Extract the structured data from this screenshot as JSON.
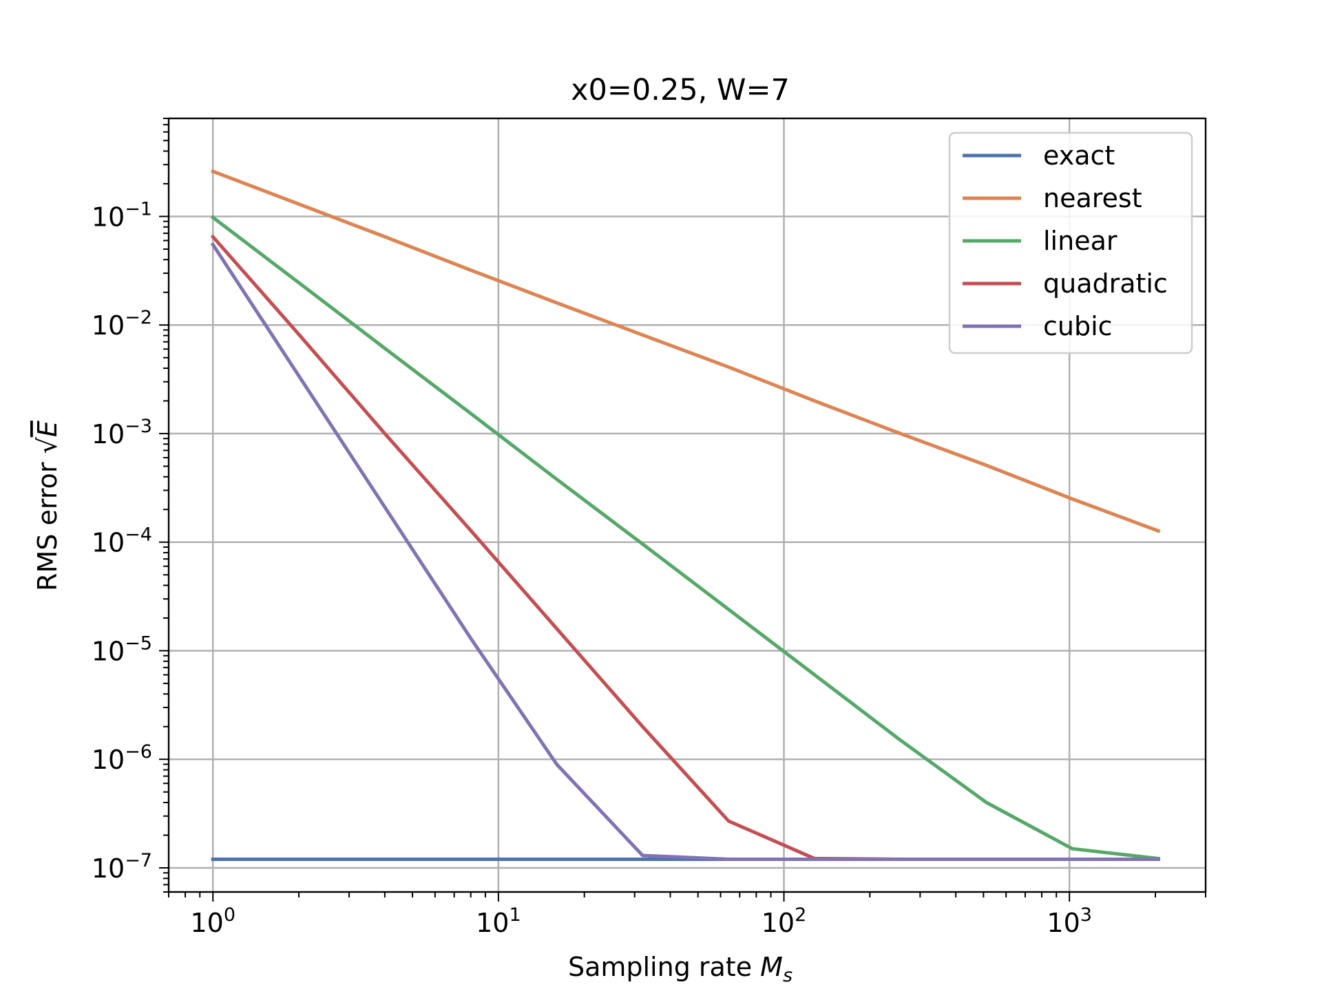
{
  "chart_data": {
    "type": "line",
    "title": "x0=0.25, W=7",
    "xlabel_text": "Sampling rate ",
    "xlabel_symbol": "M",
    "xlabel_sub": "s",
    "ylabel_text": "RMS error ",
    "ylabel_sqrt": "√",
    "ylabel_symbol": "E",
    "xscale": "log",
    "yscale": "log",
    "xlim": [
      0.7,
      3000
    ],
    "ylim": [
      6e-08,
      0.8
    ],
    "grid": true,
    "legend_position": "top-right",
    "x": [
      1,
      2,
      4,
      8,
      16,
      32,
      64,
      128,
      256,
      512,
      1024,
      2048
    ],
    "series": [
      {
        "name": "exact",
        "color": "#4c72b0",
        "values": [
          1.2e-07,
          1.2e-07,
          1.2e-07,
          1.2e-07,
          1.2e-07,
          1.2e-07,
          1.2e-07,
          1.2e-07,
          1.2e-07,
          1.2e-07,
          1.2e-07,
          1.2e-07
        ]
      },
      {
        "name": "nearest",
        "color": "#dd8452",
        "values": [
          0.26,
          0.13,
          0.065,
          0.032,
          0.016,
          0.0081,
          0.0041,
          0.002,
          0.001,
          0.00051,
          0.00025,
          0.000127
        ]
      },
      {
        "name": "linear",
        "color": "#55a868",
        "values": [
          0.098,
          0.0245,
          0.0061,
          0.00153,
          0.00038,
          9.6e-05,
          2.4e-05,
          6e-06,
          1.5e-06,
          4e-07,
          1.5e-07,
          1.22e-07
        ]
      },
      {
        "name": "quadratic",
        "color": "#c44e52",
        "values": [
          0.065,
          0.0082,
          0.001,
          0.000128,
          1.6e-05,
          2e-06,
          2.7e-07,
          1.22e-07,
          1.2e-07,
          1.2e-07,
          1.2e-07,
          1.2e-07
        ]
      },
      {
        "name": "cubic",
        "color": "#8172b3",
        "values": [
          0.055,
          0.0034,
          0.00021,
          1.3e-05,
          9e-07,
          1.3e-07,
          1.2e-07,
          1.2e-07,
          1.2e-07,
          1.2e-07,
          1.2e-07,
          1.2e-07
        ]
      }
    ],
    "x_ticks": [
      {
        "value": 1,
        "base": "10",
        "exp": "0"
      },
      {
        "value": 10,
        "base": "10",
        "exp": "1"
      },
      {
        "value": 100,
        "base": "10",
        "exp": "2"
      },
      {
        "value": 1000,
        "base": "10",
        "exp": "3"
      }
    ],
    "y_ticks": [
      {
        "value": 0.1,
        "base": "10",
        "exp": "−1"
      },
      {
        "value": 0.01,
        "base": "10",
        "exp": "−2"
      },
      {
        "value": 0.001,
        "base": "10",
        "exp": "−3"
      },
      {
        "value": 0.0001,
        "base": "10",
        "exp": "−4"
      },
      {
        "value": 1e-05,
        "base": "10",
        "exp": "−5"
      },
      {
        "value": 1e-06,
        "base": "10",
        "exp": "−6"
      },
      {
        "value": 1e-07,
        "base": "10",
        "exp": "−7"
      }
    ]
  }
}
